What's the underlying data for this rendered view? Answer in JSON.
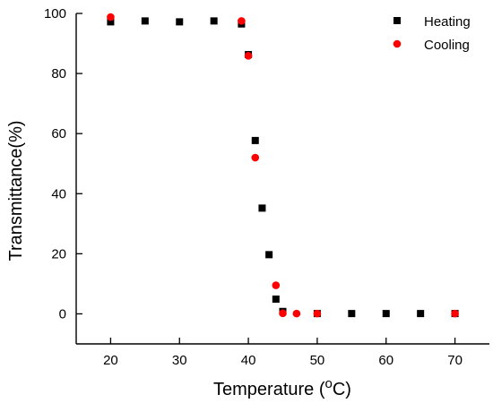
{
  "chart_data": {
    "type": "scatter",
    "xlabel": "Temperature (",
    "xlabel_unit_sup": "o",
    "xlabel_unit": "C)",
    "ylabel": "Transmittance(%)",
    "xlim": [
      15,
      75
    ],
    "ylim": [
      -10,
      100
    ],
    "xticks": [
      20,
      30,
      40,
      50,
      60,
      70
    ],
    "yticks": [
      0,
      20,
      40,
      60,
      80,
      100
    ],
    "grid": false,
    "legend_position": "top-right",
    "series": [
      {
        "name": "Heating",
        "marker": "square",
        "color": "#000000",
        "x": [
          20,
          25,
          30,
          35,
          39,
          40,
          41,
          42,
          43,
          44,
          45,
          50,
          55,
          60,
          65,
          70
        ],
        "y": [
          97.2,
          97.5,
          97.2,
          97.5,
          96.5,
          86.3,
          57.7,
          35.2,
          19.7,
          4.9,
          0.8,
          0.1,
          0.1,
          0.1,
          0.1,
          0.1
        ]
      },
      {
        "name": "Cooling",
        "marker": "circle",
        "color": "#ff0000",
        "x": [
          20,
          39,
          40,
          41,
          44,
          45,
          47,
          50,
          70
        ],
        "y": [
          98.8,
          97.5,
          85.9,
          52.0,
          9.5,
          0.2,
          0.1,
          0.1,
          0.1
        ]
      }
    ]
  }
}
